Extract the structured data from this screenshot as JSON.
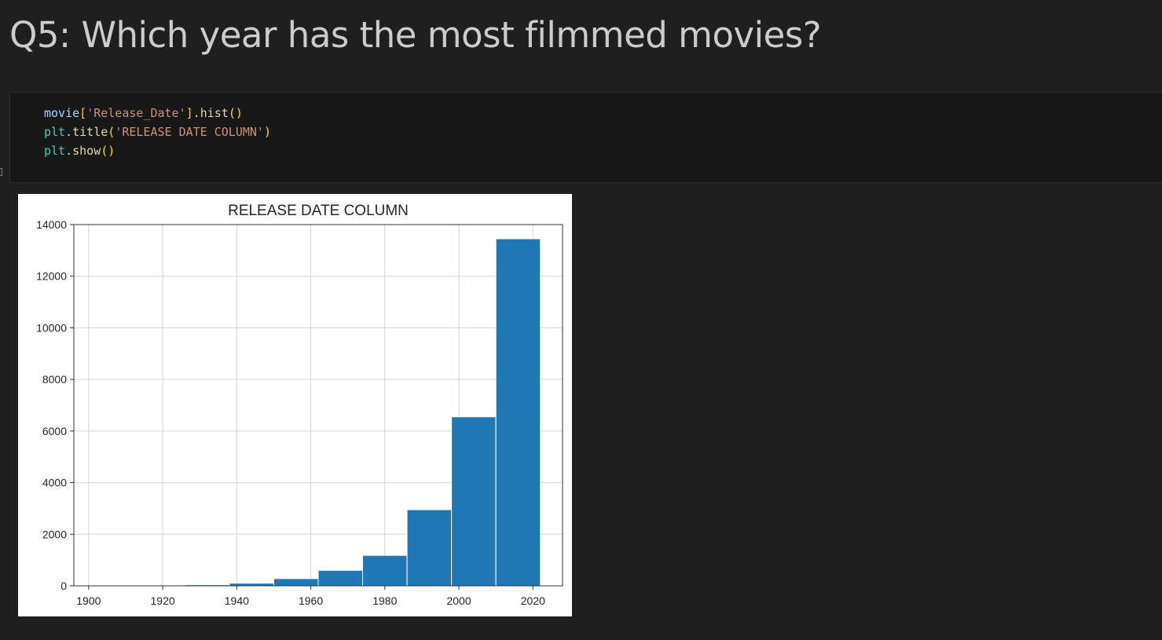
{
  "heading": "Q5: Which year has the most filmmed movies?",
  "code": {
    "line1": {
      "var": "movie",
      "b1": "[",
      "key": "'Release_Date'",
      "b2": "]",
      "dot": ".",
      "fn": "hist",
      "call": "()"
    },
    "line2": {
      "mod": "plt",
      "dot": ".",
      "fn": "title",
      "open": "(",
      "arg": "'RELEASE DATE COLUMN'",
      "close": ")"
    },
    "line3": {
      "mod": "plt",
      "dot": ".",
      "fn": "show",
      "call": "()"
    }
  },
  "colors": {
    "bar": "#1f77b4",
    "grid": "#d3d3d3"
  },
  "chart_data": {
    "type": "bar",
    "title": "RELEASE DATE COLUMN",
    "xlabel": "",
    "ylabel": "",
    "bin_edges": [
      1902,
      1914,
      1926,
      1938,
      1950,
      1962,
      1974,
      1986,
      1998,
      2010,
      2022
    ],
    "values": [
      5,
      10,
      40,
      100,
      280,
      600,
      1180,
      2950,
      6550,
      13450
    ],
    "xlim": [
      1896,
      2028
    ],
    "ylim": [
      0,
      14000
    ],
    "xticks": [
      1900,
      1920,
      1940,
      1960,
      1980,
      2000,
      2020
    ],
    "yticks": [
      0,
      2000,
      4000,
      6000,
      8000,
      10000,
      12000,
      14000
    ],
    "grid": true
  }
}
